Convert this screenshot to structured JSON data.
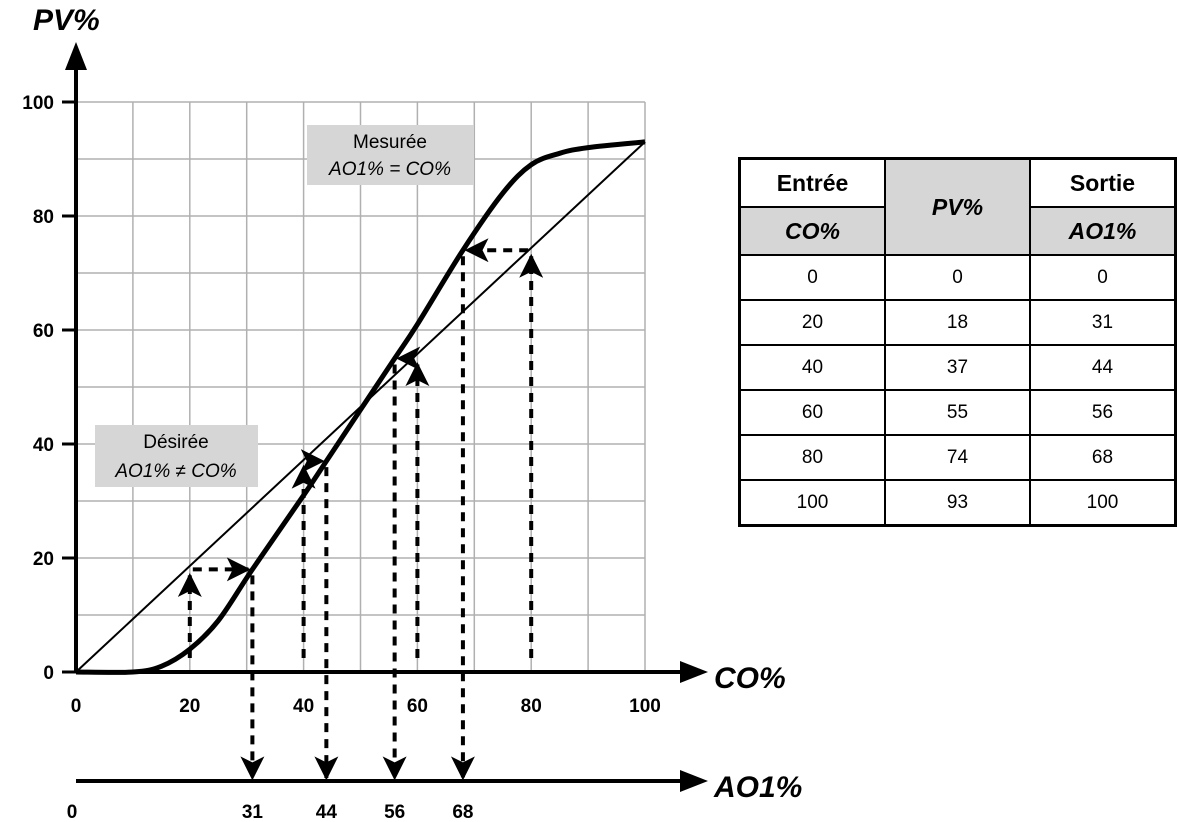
{
  "diagram": {
    "y_axis_title": "PV%",
    "x_axis_title": "CO%",
    "ao_axis_title": "AO1%",
    "y_ticks": [
      "0",
      "20",
      "40",
      "60",
      "80",
      "100"
    ],
    "x_ticks": [
      "0",
      "20",
      "40",
      "60",
      "80",
      "100"
    ],
    "ao_ticks": [
      "0",
      "31",
      "44",
      "56",
      "68"
    ],
    "label_measured": {
      "line1": "Mesurée",
      "line2": "AO1% = CO%"
    },
    "label_desired": {
      "line1": "Désirée",
      "line2": "AO1% ≠ CO%"
    }
  },
  "table": {
    "col1_header": "Entrée",
    "col1_sub": "CO%",
    "col2_header": "PV%",
    "col3_header": "Sortie",
    "col3_sub": "AO1%",
    "rows": [
      [
        "0",
        "0",
        "0"
      ],
      [
        "20",
        "18",
        "31"
      ],
      [
        "40",
        "37",
        "44"
      ],
      [
        "60",
        "55",
        "56"
      ],
      [
        "80",
        "74",
        "68"
      ],
      [
        "100",
        "93",
        "100"
      ]
    ]
  },
  "chart_data": {
    "type": "line",
    "xlabel": "CO%",
    "ylabel": "PV%",
    "xlim": [
      0,
      100
    ],
    "ylim": [
      0,
      100
    ],
    "grid": true,
    "series": [
      {
        "x": [
          0,
          100
        ],
        "y": [
          0,
          93
        ]
      },
      {
        "x": [
          0,
          10,
          15,
          20,
          25,
          31,
          40,
          44,
          50,
          56,
          60,
          68,
          75,
          80,
          85,
          90,
          100
        ],
        "y": [
          0,
          0,
          1,
          4,
          9,
          18,
          31,
          37,
          46,
          55,
          61,
          74,
          84,
          89,
          91,
          92,
          93
        ]
      }
    ],
    "mappings": [
      {
        "co": 20,
        "pv": 18,
        "ao": 31
      },
      {
        "co": 40,
        "pv": 37,
        "ao": 44
      },
      {
        "co": 60,
        "pv": 55,
        "ao": 56
      },
      {
        "co": 80,
        "pv": 74,
        "ao": 68
      }
    ],
    "colors": {
      "grid": "#b0b0b0",
      "label_box": "#d6d6d6",
      "ink": "#000000"
    }
  }
}
